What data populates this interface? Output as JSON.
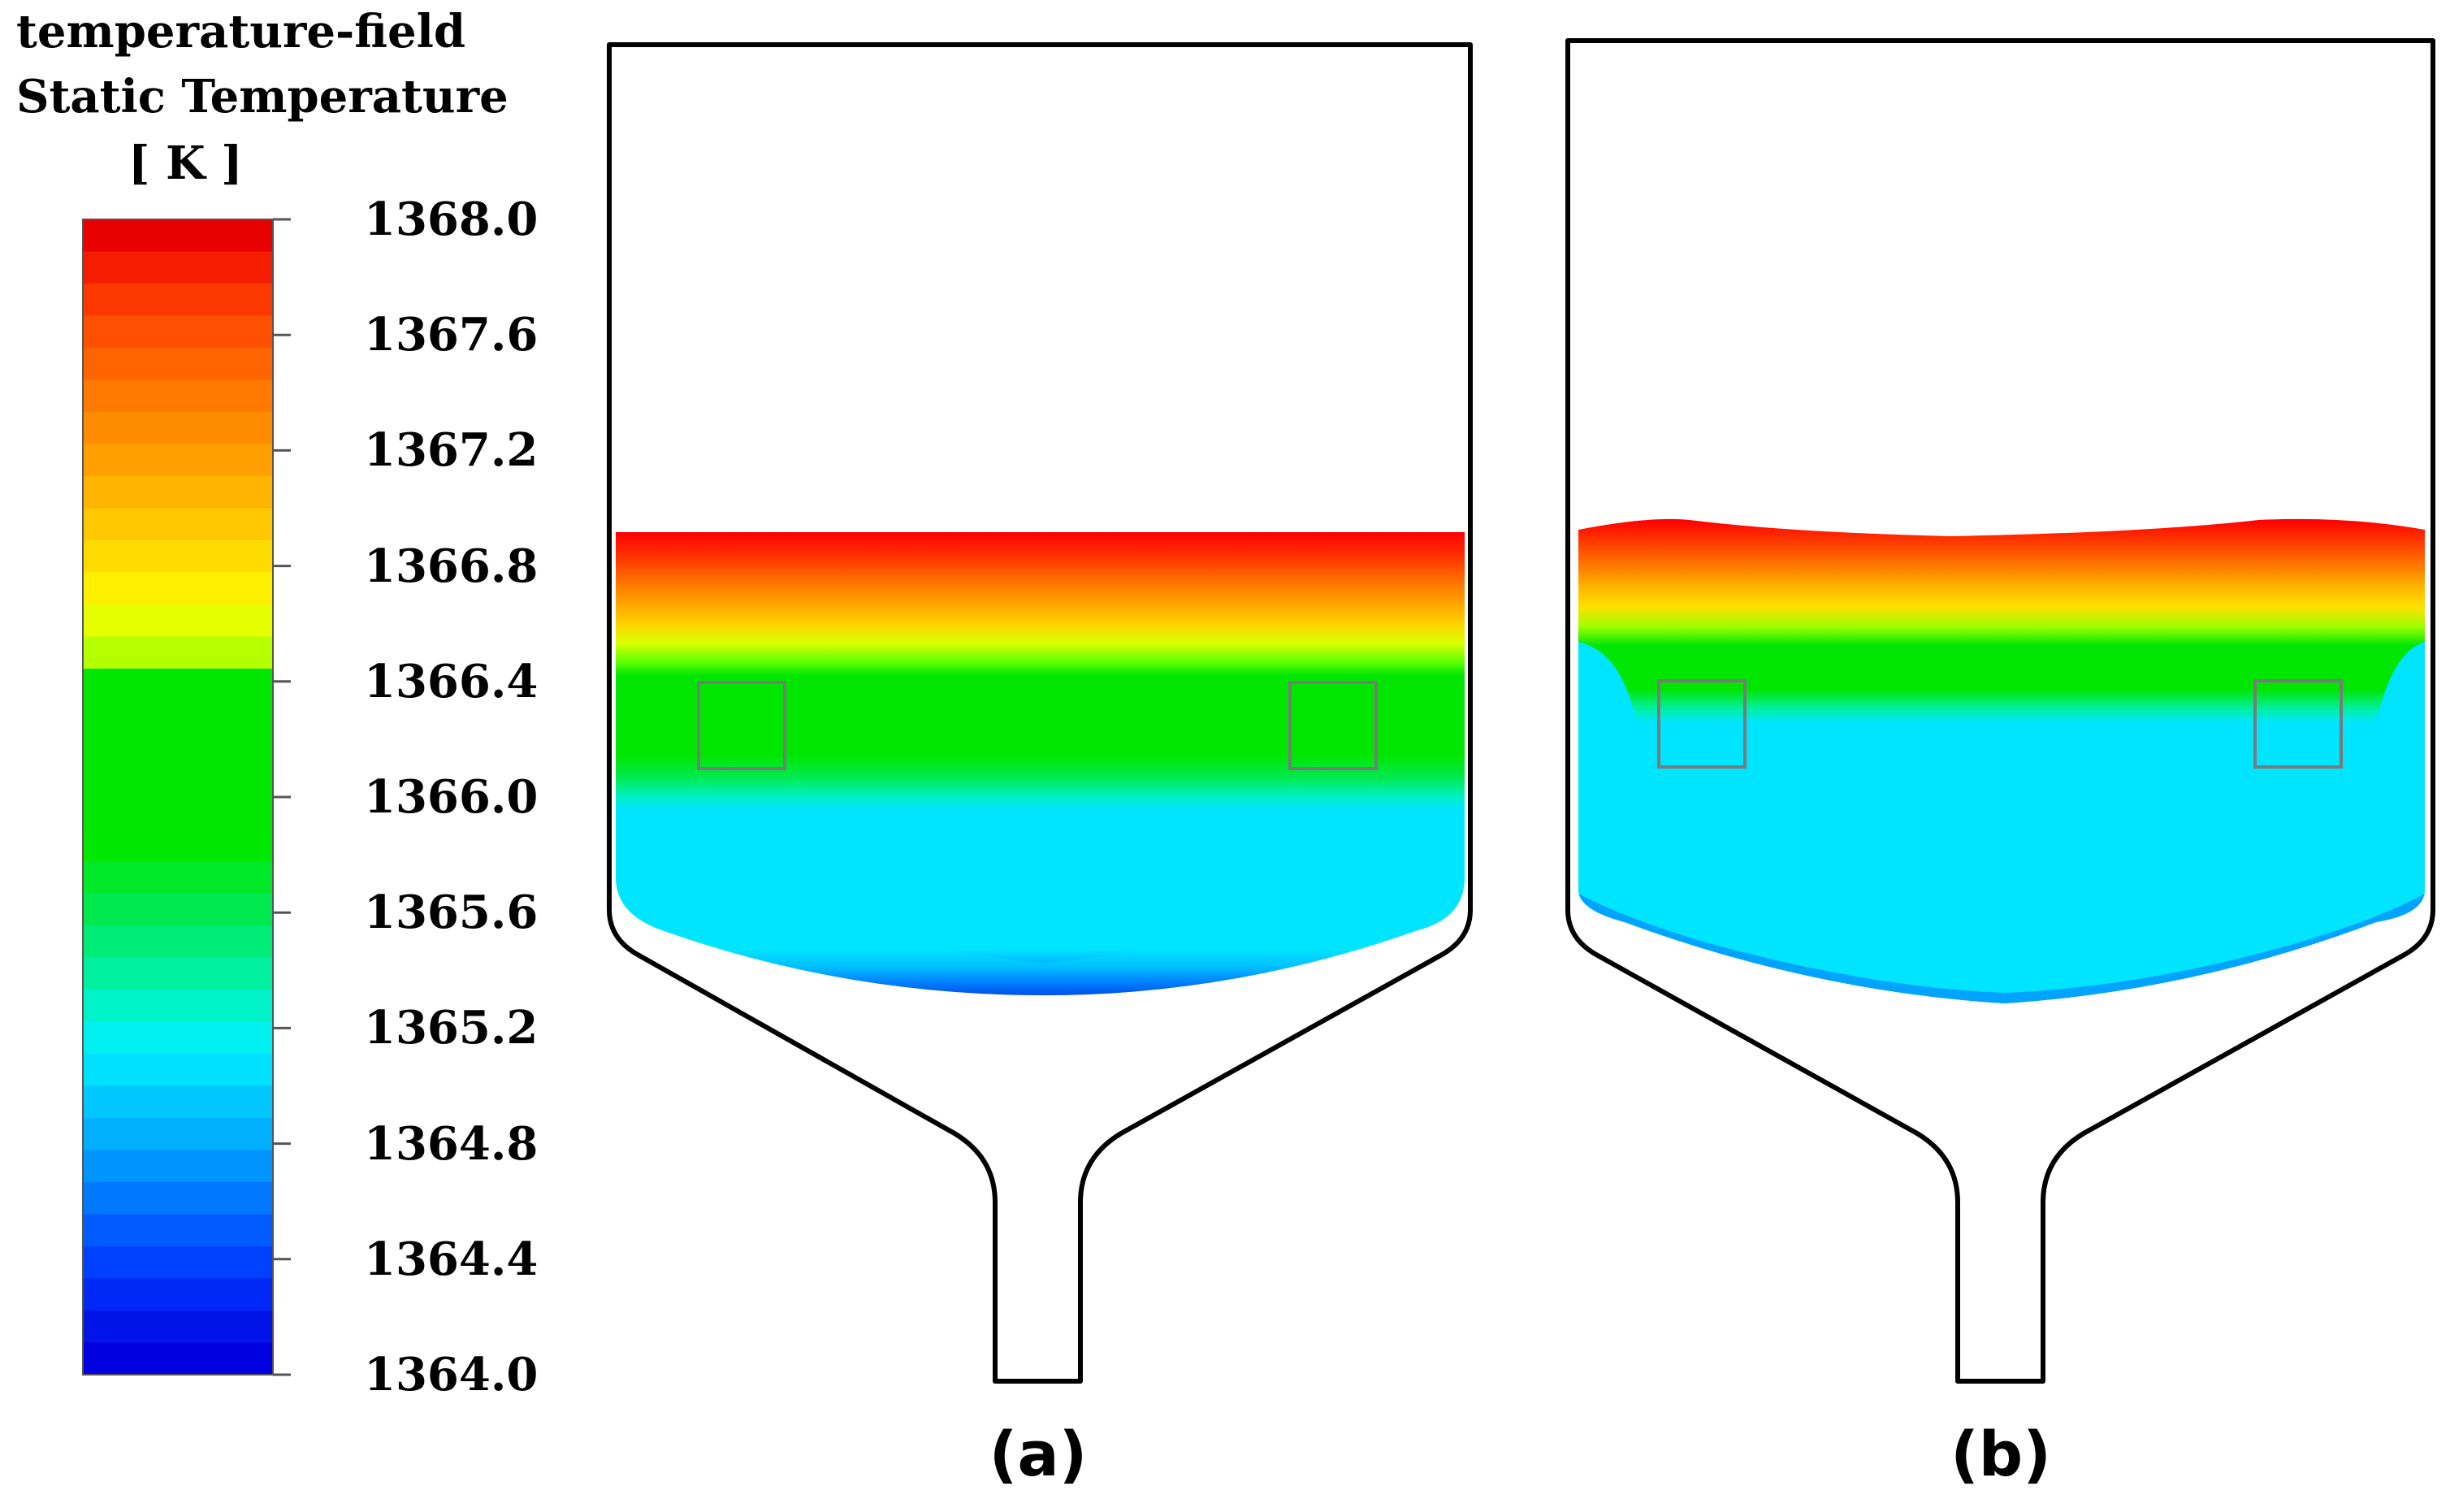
{
  "legend": {
    "title_line1": "temperature-field",
    "title_line2": "Static Temperature",
    "unit": "[ K ]",
    "ticks": [
      "1368.0",
      "1367.6",
      "1367.2",
      "1366.8",
      "1366.4",
      "1366.0",
      "1365.6",
      "1365.2",
      "1364.8",
      "1364.4",
      "1364.0"
    ],
    "range": [
      1364.0,
      1368.0
    ],
    "colors_top_to_bottom": [
      "#e80000",
      "#f51d00",
      "#fd3700",
      "#ff4f00",
      "#ff6400",
      "#ff7800",
      "#ff8c00",
      "#ffa000",
      "#ffb400",
      "#ffc800",
      "#ffdc00",
      "#fff000",
      "#e6ff00",
      "#b4ff00",
      "#00e600",
      "#00e600",
      "#00e600",
      "#00e600",
      "#00e600",
      "#00e800",
      "#00e828",
      "#00ea50",
      "#00ec78",
      "#00f0a0",
      "#00f4c8",
      "#00f0f0",
      "#00e0ff",
      "#00c8ff",
      "#00b0ff",
      "#0094ff",
      "#0078ff",
      "#005cff",
      "#0040ff",
      "#0028f5",
      "#0014e8",
      "#0000e0"
    ]
  },
  "panels": [
    {
      "caption": "(a)"
    },
    {
      "caption": "(b)"
    }
  ],
  "colors": {
    "hot": "#ff0000",
    "green": "#00e600",
    "cyan": "#00e5ff",
    "cold": "#0000e0",
    "outline": "#000000",
    "probe_box": "#808080"
  }
}
